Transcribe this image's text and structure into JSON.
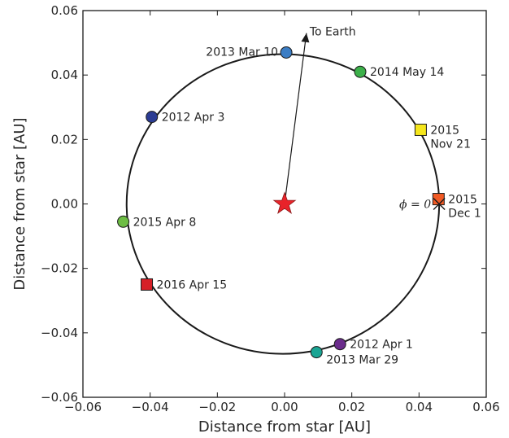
{
  "chart_data": {
    "type": "scatter",
    "title": "",
    "xlabel": "Distance from star [AU]",
    "ylabel": "Distance from star [AU]",
    "xlim": [
      -0.06,
      0.06
    ],
    "ylim": [
      -0.06,
      0.06
    ],
    "xticks": [
      "−0.06",
      "−0.04",
      "−0.02",
      "0.00",
      "0.02",
      "0.04",
      "0.06"
    ],
    "yticks": [
      "−0.06",
      "−0.04",
      "−0.02",
      "0.00",
      "0.02",
      "0.04",
      "0.06"
    ],
    "grid": false,
    "orbit": {
      "center": [
        -0.0005,
        0.0
      ],
      "radius": 0.0465
    },
    "star": {
      "x": 0.0,
      "y": 0.0,
      "color": "#e8232a"
    },
    "earth_arrow": {
      "from": [
        0.0,
        0.0
      ],
      "to": [
        0.0065,
        0.053
      ],
      "label": "To Earth"
    },
    "phase_marker": {
      "x": 0.046,
      "y": 0.0,
      "label": "ϕ = 0"
    },
    "points": [
      {
        "label": "2013 Mar 10",
        "x": 0.0005,
        "y": 0.047,
        "marker": "circle",
        "color": "#3b7dc4",
        "label_side": "left"
      },
      {
        "label": "2014 May 14",
        "x": 0.0225,
        "y": 0.041,
        "marker": "circle",
        "color": "#3cb04a",
        "label_side": "right"
      },
      {
        "label": "2012 Apr 3",
        "x": -0.0395,
        "y": 0.027,
        "marker": "circle",
        "color": "#2b3c93",
        "label_side": "right"
      },
      {
        "label": "2015 Nov 21",
        "x": 0.0405,
        "y": 0.023,
        "marker": "square",
        "color": "#f5e61c",
        "label_side": "right-two-line"
      },
      {
        "label": "2015 Dec 1",
        "x": 0.0458,
        "y": 0.0015,
        "marker": "square",
        "color": "#f25a24",
        "label_side": "right-two-line"
      },
      {
        "label": "2015 Apr 8",
        "x": -0.048,
        "y": -0.0055,
        "marker": "circle",
        "color": "#6dbd44",
        "label_side": "right"
      },
      {
        "label": "2016 Apr 15",
        "x": -0.041,
        "y": -0.025,
        "marker": "square",
        "color": "#d62027",
        "label_side": "right"
      },
      {
        "label": "2012 Apr 1",
        "x": 0.0165,
        "y": -0.0435,
        "marker": "circle",
        "color": "#6b2d8c",
        "label_side": "right"
      },
      {
        "label": "2013 Mar 29",
        "x": 0.0095,
        "y": -0.046,
        "marker": "circle",
        "color": "#1aa594",
        "label_side": "below-right"
      }
    ]
  }
}
